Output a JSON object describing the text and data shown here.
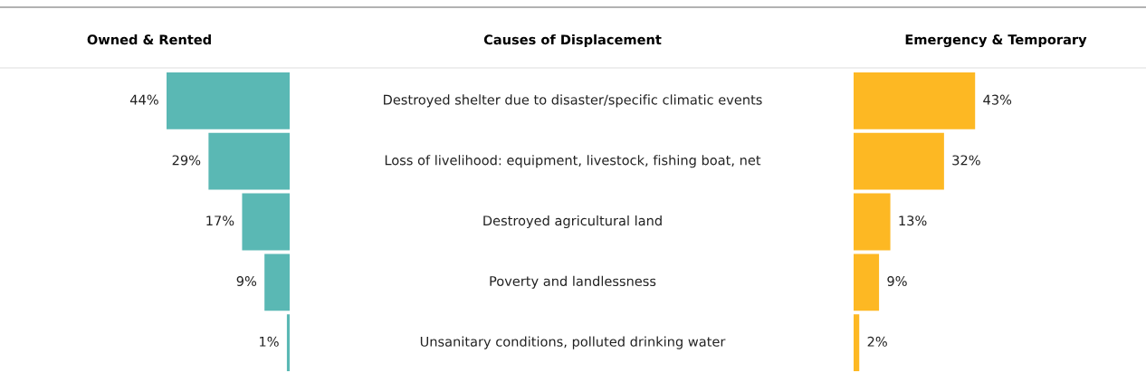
{
  "chart_data": [
    {
      "type": "bar",
      "orientation": "horizontal",
      "title": "Owned & Rented",
      "ylabel": "Causes of Displacement",
      "color": "#5ab8b4",
      "categories": [
        "Destroyed shelter due to disaster/specific climatic events",
        "Loss of livelihood: equipment, livestock, fishing boat, net",
        "Destroyed agricultural land",
        "Poverty and landlessness",
        "Unsanitary conditions, polluted drinking water"
      ],
      "values": [
        44,
        29,
        17,
        9,
        1
      ],
      "value_labels": [
        "44%",
        "29%",
        "17%",
        "9%",
        "1%"
      ]
    },
    {
      "type": "bar",
      "orientation": "horizontal",
      "title": "Emergency & Temporary",
      "color": "#fdb823",
      "categories": [
        null,
        null,
        null,
        null,
        null
      ],
      "values": [
        43,
        32,
        13,
        9,
        2
      ],
      "value_labels": [
        "43%",
        "32%",
        "13%",
        "9%",
        "2%"
      ]
    }
  ]
}
